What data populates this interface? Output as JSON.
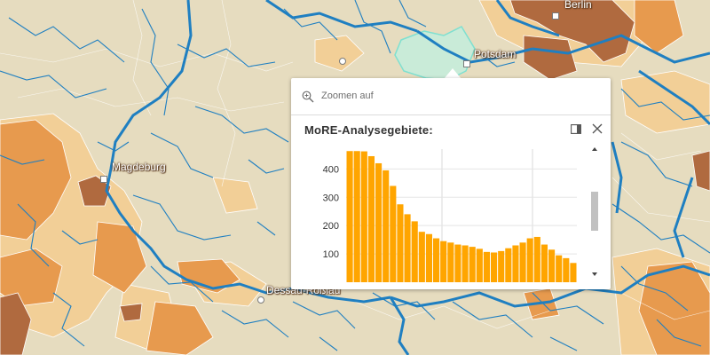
{
  "map": {
    "cities": {
      "berlin": "Berlin",
      "potsdam": "Potsdam",
      "magdeburg": "Magdeburg",
      "dessau": "Dessau-Roßlau"
    }
  },
  "popup": {
    "zoom_label": "Zoomen auf",
    "title": "MoRE-Analysegebiete:",
    "icons": {
      "zoom": "zoom-in-icon",
      "dock": "dock-icon",
      "close": "close-icon"
    }
  },
  "colors": {
    "bar": "#ffa500",
    "river": "#1f7fc1",
    "map_background": "#e6dcbf"
  },
  "chart_data": {
    "type": "bar",
    "ylim": [
      0,
      470
    ],
    "yticks": [
      "100",
      "200",
      "300",
      "400"
    ],
    "values": [
      463,
      463,
      462,
      445,
      420,
      395,
      340,
      275,
      240,
      215,
      178,
      170,
      155,
      145,
      140,
      133,
      130,
      125,
      118,
      107,
      105,
      110,
      120,
      130,
      140,
      155,
      160,
      133,
      115,
      95,
      85,
      68
    ]
  }
}
